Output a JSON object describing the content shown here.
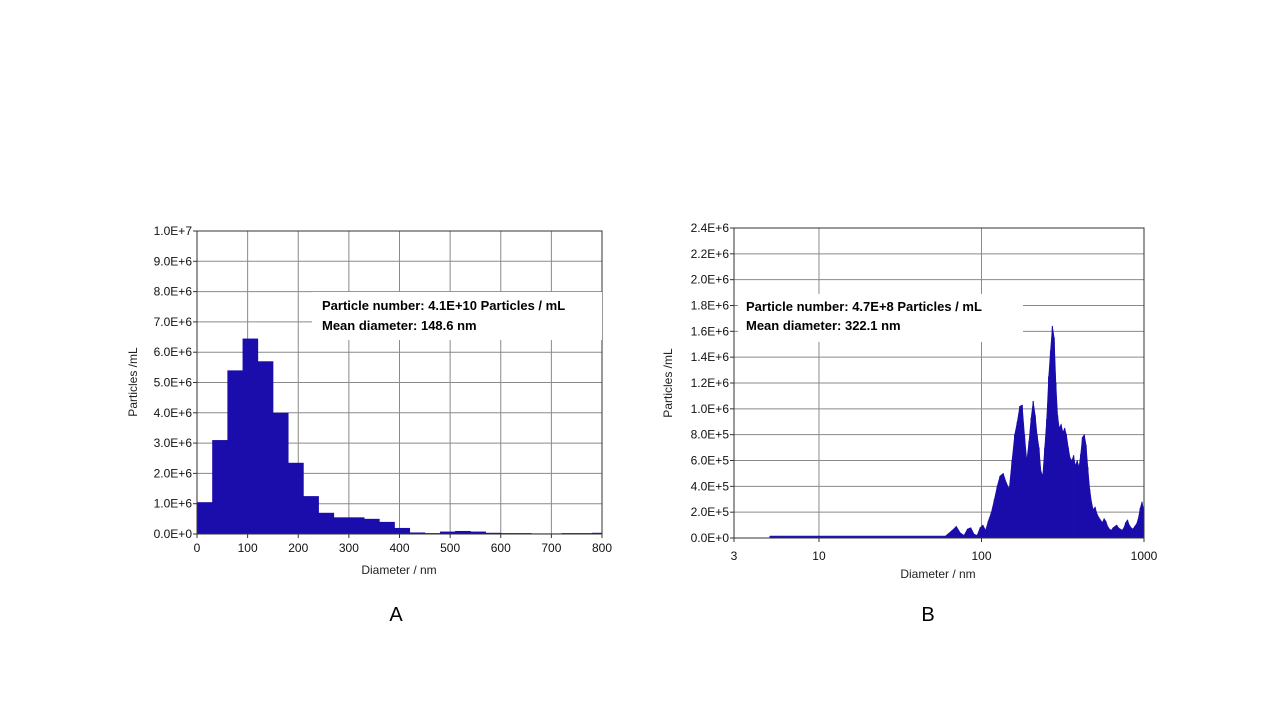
{
  "chart_data": [
    {
      "panel": "A",
      "type": "bar",
      "xlabel": "Diameter / nm",
      "ylabel": "Particles /mL",
      "xlim": [
        0,
        800
      ],
      "ylim": [
        0,
        10000000
      ],
      "x_scale": "linear",
      "grid": true,
      "bar_color": "#1a0dab",
      "xticks": [
        "0",
        "100",
        "200",
        "300",
        "400",
        "500",
        "600",
        "700",
        "800"
      ],
      "yticks": [
        "0.0E+0",
        "1.0E+6",
        "2.0E+6",
        "3.0E+6",
        "4.0E+6",
        "5.0E+6",
        "6.0E+6",
        "7.0E+6",
        "8.0E+6",
        "9.0E+6",
        "1.0E+7"
      ],
      "annotation": [
        "Particle number: 4.1E+10 Particles / mL",
        "Mean diameter: 148.6 nm"
      ],
      "bin_edges": [
        0,
        30,
        60,
        90,
        120,
        150,
        180,
        210,
        240,
        270,
        300,
        330,
        360,
        390,
        420,
        450,
        480,
        510,
        540,
        570,
        600,
        630,
        660,
        690,
        720,
        750,
        780,
        800
      ],
      "values": [
        1050000,
        3100000,
        5400000,
        6450000,
        5700000,
        4000000,
        2350000,
        1250000,
        700000,
        550000,
        550000,
        500000,
        400000,
        200000,
        50000,
        30000,
        80000,
        100000,
        80000,
        40000,
        30000,
        30000,
        20000,
        20000,
        30000,
        30000,
        40000
      ]
    },
    {
      "panel": "B",
      "type": "bar",
      "xlabel": "Diameter / nm",
      "ylabel": "Particles /mL",
      "xlim": [
        3,
        1000
      ],
      "ylim": [
        0,
        2400000
      ],
      "x_scale": "log",
      "grid": true,
      "bar_color": "#1a0dab",
      "xticks": [
        "3",
        "10",
        "100",
        "1000"
      ],
      "xtick_values": [
        3,
        10,
        100,
        1000
      ],
      "yticks": [
        "0.0E+0",
        "2.0E+5",
        "4.0E+5",
        "6.0E+5",
        "8.0E+5",
        "1.0E+6",
        "1.2E+6",
        "1.4E+6",
        "1.6E+6",
        "1.8E+6",
        "2.0E+6",
        "2.2E+6",
        "2.4E+6"
      ],
      "annotation": [
        "Particle number: 4.7E+8 Particles / mL",
        "Mean diameter: 322.1 nm"
      ],
      "points": [
        [
          5,
          15000
        ],
        [
          60,
          15000
        ],
        [
          66,
          60000
        ],
        [
          70,
          90000
        ],
        [
          74,
          40000
        ],
        [
          78,
          20000
        ],
        [
          82,
          70000
        ],
        [
          86,
          80000
        ],
        [
          90,
          30000
        ],
        [
          94,
          20000
        ],
        [
          98,
          80000
        ],
        [
          102,
          100000
        ],
        [
          106,
          60000
        ],
        [
          110,
          130000
        ],
        [
          115,
          200000
        ],
        [
          120,
          300000
        ],
        [
          125,
          400000
        ],
        [
          130,
          480000
        ],
        [
          136,
          500000
        ],
        [
          142,
          430000
        ],
        [
          148,
          380000
        ],
        [
          154,
          600000
        ],
        [
          160,
          800000
        ],
        [
          166,
          900000
        ],
        [
          172,
          1020000
        ],
        [
          178,
          1030000
        ],
        [
          184,
          800000
        ],
        [
          190,
          600000
        ],
        [
          196,
          750000
        ],
        [
          202,
          930000
        ],
        [
          208,
          1060000
        ],
        [
          214,
          950000
        ],
        [
          220,
          800000
        ],
        [
          226,
          700000
        ],
        [
          232,
          520000
        ],
        [
          238,
          480000
        ],
        [
          245,
          700000
        ],
        [
          252,
          920000
        ],
        [
          259,
          1250000
        ],
        [
          266,
          1450000
        ],
        [
          273,
          1640000
        ],
        [
          280,
          1550000
        ],
        [
          287,
          1200000
        ],
        [
          294,
          950000
        ],
        [
          301,
          850000
        ],
        [
          309,
          880000
        ],
        [
          317,
          820000
        ],
        [
          325,
          850000
        ],
        [
          333,
          800000
        ],
        [
          342,
          700000
        ],
        [
          351,
          620000
        ],
        [
          360,
          600000
        ],
        [
          369,
          640000
        ],
        [
          378,
          560000
        ],
        [
          388,
          600000
        ],
        [
          398,
          550000
        ],
        [
          408,
          650000
        ],
        [
          418,
          780000
        ],
        [
          429,
          800000
        ],
        [
          440,
          720000
        ],
        [
          451,
          550000
        ],
        [
          463,
          380000
        ],
        [
          475,
          280000
        ],
        [
          487,
          220000
        ],
        [
          500,
          240000
        ],
        [
          513,
          190000
        ],
        [
          526,
          160000
        ],
        [
          540,
          140000
        ],
        [
          554,
          120000
        ],
        [
          568,
          150000
        ],
        [
          583,
          130000
        ],
        [
          598,
          90000
        ],
        [
          613,
          70000
        ],
        [
          629,
          60000
        ],
        [
          645,
          80000
        ],
        [
          662,
          90000
        ],
        [
          679,
          100000
        ],
        [
          697,
          80000
        ],
        [
          715,
          70000
        ],
        [
          733,
          60000
        ],
        [
          752,
          80000
        ],
        [
          772,
          120000
        ],
        [
          792,
          140000
        ],
        [
          812,
          100000
        ],
        [
          833,
          80000
        ],
        [
          855,
          70000
        ],
        [
          877,
          90000
        ],
        [
          900,
          110000
        ],
        [
          923,
          150000
        ],
        [
          947,
          230000
        ],
        [
          972,
          280000
        ],
        [
          995,
          220000
        ]
      ]
    }
  ]
}
